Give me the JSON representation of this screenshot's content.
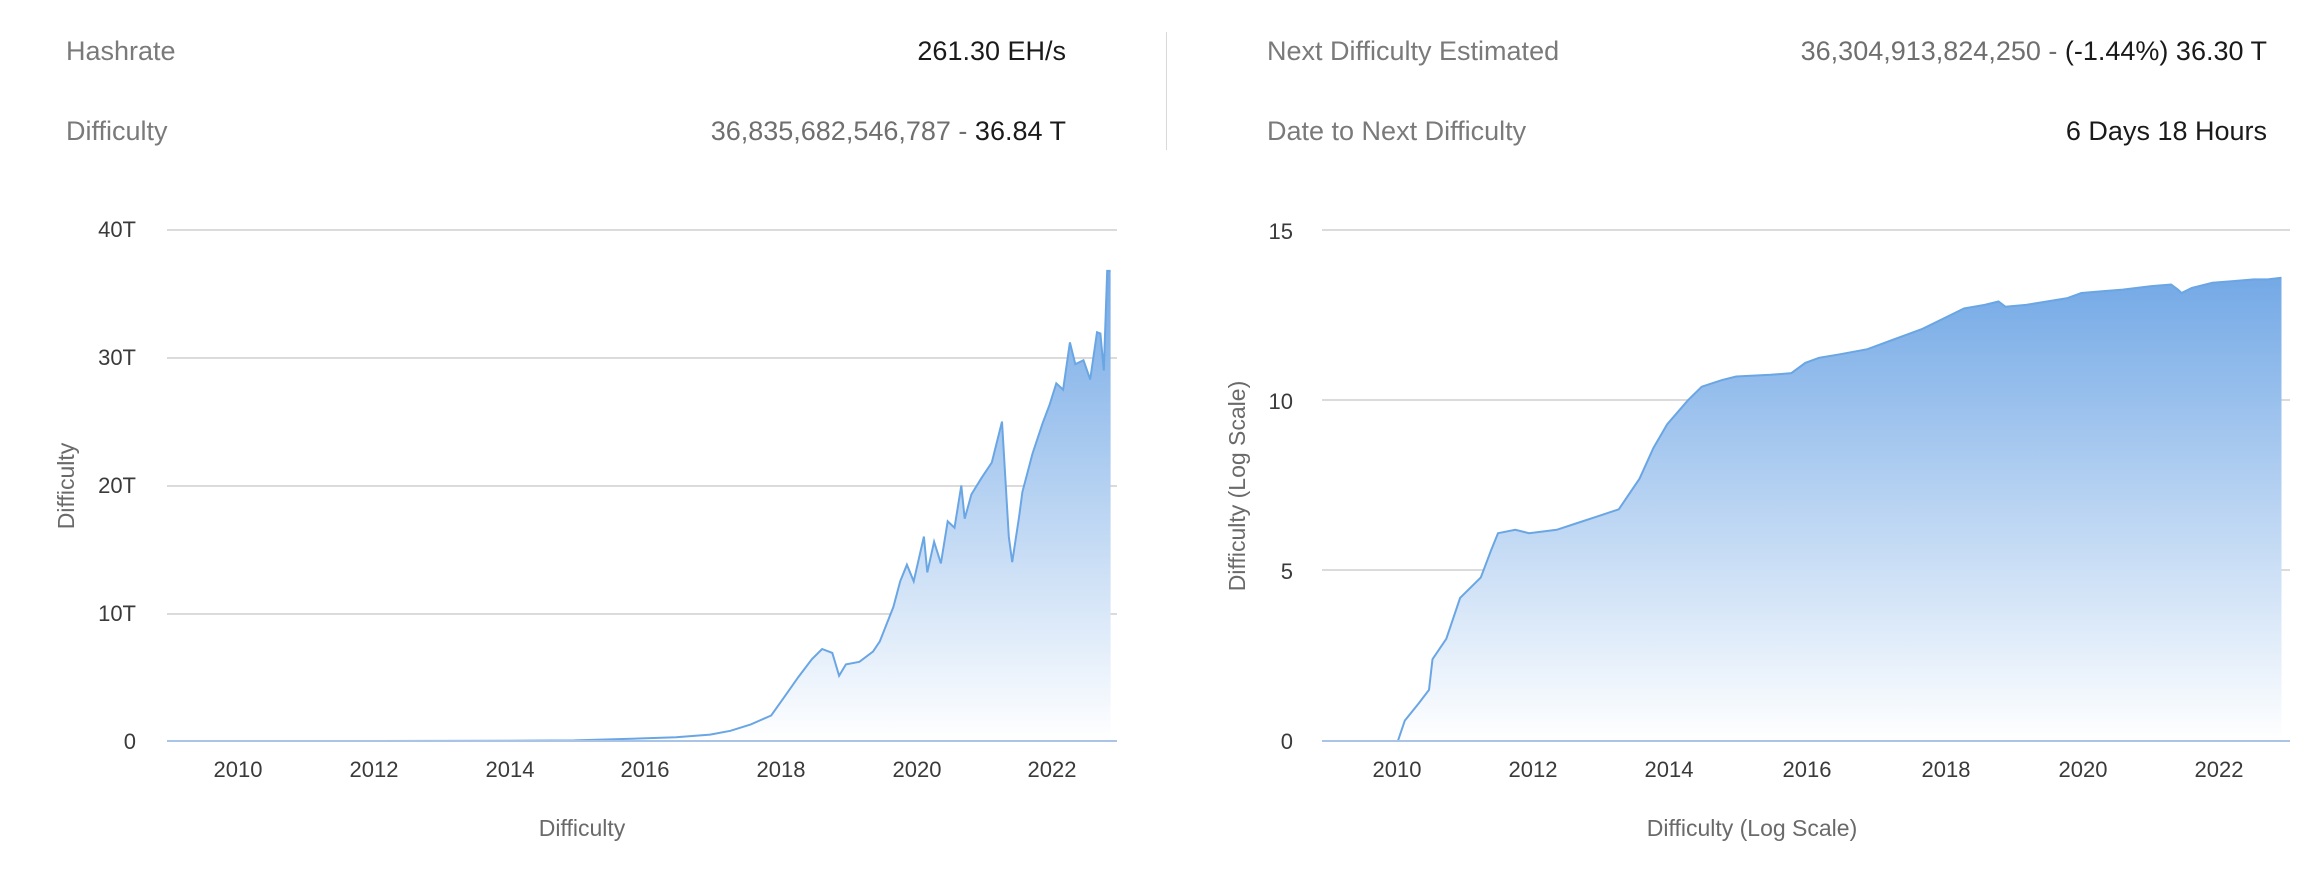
{
  "stats": {
    "hashrate_label": "Hashrate",
    "hashrate_value": "261.30 EH/s",
    "difficulty_label": "Difficulty",
    "difficulty_number": "36,835,682,546,787",
    "difficulty_sep": " - ",
    "difficulty_short": "36.84 T",
    "next_label": "Next Difficulty Estimated",
    "next_number": "36,304,913,824,250",
    "next_sep": " - ",
    "next_change": "(-1.44%)",
    "next_short": "36.30 T",
    "date_label": "Date to Next Difficulty",
    "date_value": "6 Days 18 Hours"
  },
  "colors": {
    "line": "#6aa6e4",
    "fill_top": "#74a9e6",
    "fill_bottom": "#ffffff",
    "grid": "#cfcfcf",
    "axis": "#a9c4e6"
  },
  "chart_data": [
    {
      "type": "area",
      "title": "",
      "xlabel": "Difficulty",
      "ylabel": "Difficulty",
      "xlim": [
        2009.0,
        2022.95
      ],
      "ylim": [
        0,
        40
      ],
      "y_unit": "T",
      "grid": true,
      "x_ticks": [
        2010,
        2012,
        2014,
        2016,
        2018,
        2020,
        2022
      ],
      "x_tick_labels": [
        "2010",
        "2012",
        "2014",
        "2016",
        "2018",
        "2020",
        "2022"
      ],
      "y_ticks": [
        0,
        10,
        20,
        30,
        40
      ],
      "y_tick_labels": [
        "0",
        "10T",
        "20T",
        "30T",
        "40T"
      ],
      "x": [
        2009.05,
        2010,
        2012,
        2014,
        2015,
        2016,
        2016.5,
        2017,
        2017.3,
        2017.6,
        2017.9,
        2018.1,
        2018.3,
        2018.5,
        2018.65,
        2018.8,
        2018.9,
        2019.0,
        2019.2,
        2019.4,
        2019.5,
        2019.7,
        2019.8,
        2019.9,
        2020.0,
        2020.15,
        2020.2,
        2020.3,
        2020.4,
        2020.5,
        2020.6,
        2020.7,
        2020.75,
        2020.85,
        2021.0,
        2021.15,
        2021.3,
        2021.4,
        2021.45,
        2021.55,
        2021.6,
        2021.75,
        2021.9,
        2022.0,
        2022.1,
        2022.2,
        2022.3,
        2022.38,
        2022.5,
        2022.6,
        2022.7,
        2022.75,
        2022.8,
        2022.85,
        2022.9
      ],
      "y": [
        0,
        0,
        0,
        0.02,
        0.05,
        0.2,
        0.3,
        0.5,
        0.8,
        1.3,
        2.0,
        3.5,
        5.0,
        6.4,
        7.2,
        6.9,
        5.1,
        6.0,
        6.2,
        7.0,
        7.8,
        10.5,
        12.5,
        13.8,
        12.5,
        16.0,
        13.2,
        15.6,
        13.9,
        17.2,
        16.7,
        20.0,
        17.4,
        19.3,
        20.6,
        21.8,
        25.0,
        16.0,
        14.0,
        17.5,
        19.5,
        22.5,
        24.9,
        26.3,
        28.0,
        27.5,
        31.2,
        29.5,
        29.8,
        28.3,
        32.0,
        31.9,
        29.0,
        36.8,
        36.8
      ]
    },
    {
      "type": "area",
      "title": "",
      "xlabel": "Difficulty (Log Scale)",
      "ylabel": "Difficulty (Log Scale)",
      "xlim": [
        2009.0,
        2022.95
      ],
      "ylim": [
        0,
        15
      ],
      "grid": true,
      "x_ticks": [
        2010,
        2012,
        2014,
        2016,
        2018,
        2020,
        2022
      ],
      "x_tick_labels": [
        "2010",
        "2012",
        "2014",
        "2016",
        "2018",
        "2020",
        "2022"
      ],
      "y_ticks": [
        0,
        5,
        10,
        15
      ],
      "y_tick_labels": [
        "0",
        "5",
        "10",
        "15"
      ],
      "x": [
        2009.05,
        2010.1,
        2010.2,
        2010.4,
        2010.55,
        2010.6,
        2010.8,
        2011.0,
        2011.3,
        2011.45,
        2011.55,
        2011.8,
        2012.0,
        2012.4,
        2012.7,
        2013.0,
        2013.3,
        2013.6,
        2013.8,
        2014.0,
        2014.3,
        2014.5,
        2014.8,
        2015.0,
        2015.5,
        2015.8,
        2016.0,
        2016.2,
        2016.5,
        2016.9,
        2017.3,
        2017.7,
        2018.0,
        2018.3,
        2018.6,
        2018.8,
        2018.9,
        2019.2,
        2019.5,
        2019.8,
        2020.0,
        2020.3,
        2020.6,
        2021.0,
        2021.3,
        2021.4,
        2021.45,
        2021.6,
        2021.9,
        2022.2,
        2022.5,
        2022.7,
        2022.9
      ],
      "y": [
        0,
        0,
        0.6,
        1.1,
        1.5,
        2.4,
        3.0,
        4.2,
        4.8,
        5.6,
        6.1,
        6.2,
        6.1,
        6.2,
        6.4,
        6.6,
        6.8,
        7.7,
        8.6,
        9.3,
        10.0,
        10.4,
        10.6,
        10.7,
        10.75,
        10.8,
        11.1,
        11.25,
        11.35,
        11.5,
        11.8,
        12.1,
        12.4,
        12.7,
        12.8,
        12.9,
        12.75,
        12.8,
        12.9,
        13.0,
        13.15,
        13.2,
        13.25,
        13.35,
        13.4,
        13.25,
        13.15,
        13.3,
        13.45,
        13.5,
        13.55,
        13.55,
        13.6
      ]
    }
  ]
}
